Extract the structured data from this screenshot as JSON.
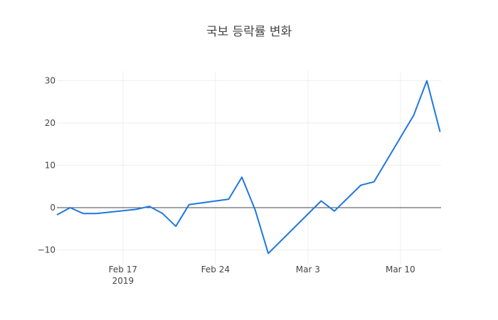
{
  "chart_data": {
    "type": "line",
    "title": "국보 등락률 변화",
    "xlabel": "",
    "ylabel": "",
    "ylim": [
      -12,
      32
    ],
    "x_ticks": [
      {
        "label": "Feb 17",
        "sub": "2019",
        "day": 5
      },
      {
        "label": "Feb 24",
        "sub": "",
        "day": 12
      },
      {
        "label": "Mar 3",
        "sub": "",
        "day": 19
      },
      {
        "label": "Mar 10",
        "sub": "",
        "day": 26
      }
    ],
    "y_ticks": [
      30,
      20,
      10,
      0,
      -10
    ],
    "grid": true,
    "legend": null,
    "line_color": "#1f77e0",
    "series": [
      {
        "name": "등락률",
        "x": [
          "2019-02-12",
          "2019-02-13",
          "2019-02-14",
          "2019-02-15",
          "2019-02-18",
          "2019-02-19",
          "2019-02-20",
          "2019-02-21",
          "2019-02-22",
          "2019-02-25",
          "2019-02-26",
          "2019-02-27",
          "2019-02-28",
          "2019-03-04",
          "2019-03-05",
          "2019-03-07",
          "2019-03-08",
          "2019-03-11",
          "2019-03-12",
          "2019-03-13"
        ],
        "day": [
          0,
          1,
          2,
          3,
          6,
          7,
          8,
          9,
          10,
          13,
          14,
          15,
          16,
          20,
          21,
          23,
          24,
          27,
          28,
          29
        ],
        "values": [
          -1.7,
          0.0,
          -1.4,
          -1.4,
          -0.4,
          0.3,
          -1.4,
          -4.4,
          0.7,
          2.0,
          7.2,
          -0.5,
          -10.8,
          1.6,
          -0.8,
          5.3,
          6.1,
          21.8,
          30.0,
          17.9
        ]
      }
    ]
  }
}
